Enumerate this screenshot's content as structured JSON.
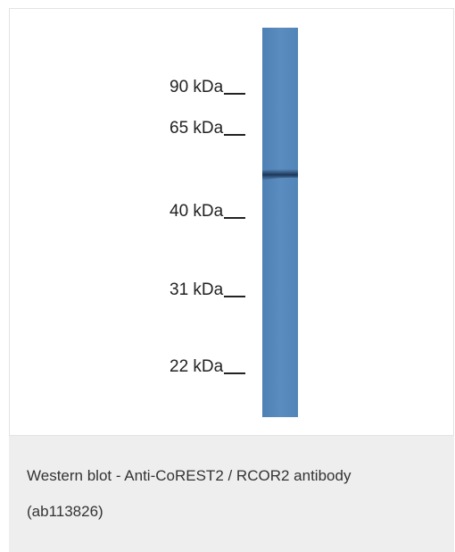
{
  "figure": {
    "markers": [
      {
        "label": "90 kDa"
      },
      {
        "label": "65 kDa"
      },
      {
        "label": "40 kDa"
      },
      {
        "label": "31 kDa"
      },
      {
        "label": "22 kDa"
      }
    ],
    "lane_color": "#5a8bbd",
    "band_color": "#1e3a5c"
  },
  "caption": {
    "line1": "Western blot - Anti-CoREST2 / RCOR2 antibody",
    "line2": "(ab113826)"
  }
}
